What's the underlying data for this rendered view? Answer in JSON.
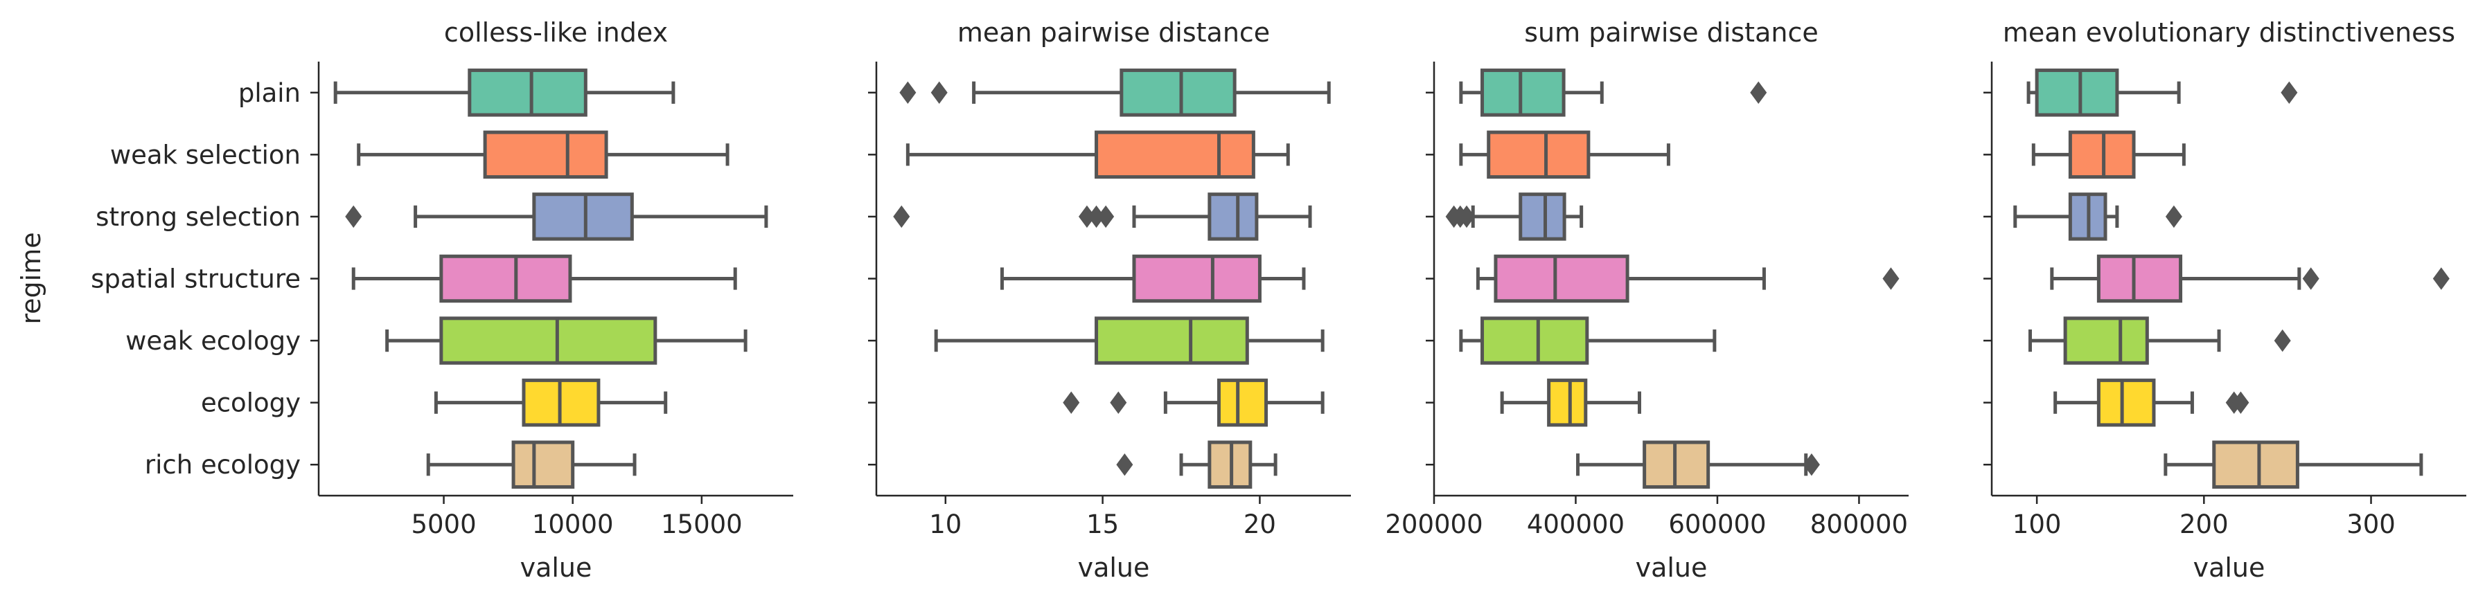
{
  "figure": {
    "ylabel": "regime",
    "categories": [
      "plain",
      "weak selection",
      "strong selection",
      "spatial structure",
      "weak ecology",
      "ecology",
      "rich ecology"
    ],
    "colors": [
      "#66c2a5",
      "#fc8d62",
      "#8da0cb",
      "#e78ac3",
      "#a6d854",
      "#ffd92f",
      "#e5c494"
    ],
    "line_color": "#555555"
  },
  "chart_data": [
    {
      "type": "box",
      "orientation": "horizontal",
      "title": "colless-like index",
      "xlabel": "value",
      "xlim": [
        150,
        18550
      ],
      "xticks": [
        5000,
        10000,
        15000
      ],
      "xtick_labels": [
        "5000",
        "10000",
        "15000"
      ],
      "boxes": [
        {
          "category": "plain",
          "whislo": 800,
          "q1": 6000,
          "median": 8400,
          "q3": 10500,
          "whishi": 13900,
          "fliers": []
        },
        {
          "category": "weak selection",
          "whislo": 1700,
          "q1": 6600,
          "median": 9800,
          "q3": 11300,
          "whishi": 16000,
          "fliers": []
        },
        {
          "category": "strong selection",
          "whislo": 3900,
          "q1": 8500,
          "median": 10500,
          "q3": 12300,
          "whishi": 17500,
          "fliers": [
            1500
          ]
        },
        {
          "category": "spatial structure",
          "whislo": 1500,
          "q1": 4900,
          "median": 7800,
          "q3": 9900,
          "whishi": 16300,
          "fliers": []
        },
        {
          "category": "weak ecology",
          "whislo": 2800,
          "q1": 4900,
          "median": 9400,
          "q3": 13200,
          "whishi": 16700,
          "fliers": []
        },
        {
          "category": "ecology",
          "whislo": 4700,
          "q1": 8100,
          "median": 9500,
          "q3": 11000,
          "whishi": 13600,
          "fliers": []
        },
        {
          "category": "rich ecology",
          "whislo": 4400,
          "q1": 7700,
          "median": 8500,
          "q3": 10000,
          "whishi": 12400,
          "fliers": []
        }
      ]
    },
    {
      "type": "box",
      "orientation": "horizontal",
      "title": "mean pairwise distance",
      "xlabel": "value",
      "xlim": [
        7.8,
        22.9
      ],
      "xticks": [
        10,
        15,
        20
      ],
      "xtick_labels": [
        "10",
        "15",
        "20"
      ],
      "boxes": [
        {
          "category": "plain",
          "whislo": 10.9,
          "q1": 15.6,
          "median": 17.5,
          "q3": 19.2,
          "whishi": 22.2,
          "fliers": [
            8.8,
            9.8
          ]
        },
        {
          "category": "weak selection",
          "whislo": 8.8,
          "q1": 14.8,
          "median": 18.7,
          "q3": 19.8,
          "whishi": 20.9,
          "fliers": []
        },
        {
          "category": "strong selection",
          "whislo": 16.0,
          "q1": 18.4,
          "median": 19.3,
          "q3": 19.9,
          "whishi": 21.6,
          "fliers": [
            8.6,
            14.5,
            14.8,
            15.1
          ]
        },
        {
          "category": "spatial structure",
          "whislo": 11.8,
          "q1": 16.0,
          "median": 18.5,
          "q3": 20.0,
          "whishi": 21.4,
          "fliers": []
        },
        {
          "category": "weak ecology",
          "whislo": 9.7,
          "q1": 14.8,
          "median": 17.8,
          "q3": 19.6,
          "whishi": 22.0,
          "fliers": []
        },
        {
          "category": "ecology",
          "whislo": 17.0,
          "q1": 18.7,
          "median": 19.3,
          "q3": 20.2,
          "whishi": 22.0,
          "fliers": [
            14.0,
            15.5
          ]
        },
        {
          "category": "rich ecology",
          "whislo": 17.5,
          "q1": 18.4,
          "median": 19.1,
          "q3": 19.7,
          "whishi": 20.5,
          "fliers": [
            15.7
          ]
        }
      ]
    },
    {
      "type": "box",
      "orientation": "horizontal",
      "title": "sum pairwise distance",
      "xlabel": "value",
      "xlim": [
        200000,
        870000
      ],
      "xticks": [
        200000,
        400000,
        600000,
        800000
      ],
      "xtick_labels": [
        "200000",
        "400000",
        "600000",
        "800000"
      ],
      "boxes": [
        {
          "category": "plain",
          "whislo": 238000,
          "q1": 268000,
          "median": 322000,
          "q3": 383000,
          "whishi": 437000,
          "fliers": [
            658000
          ]
        },
        {
          "category": "weak selection",
          "whislo": 238000,
          "q1": 277000,
          "median": 358000,
          "q3": 418000,
          "whishi": 531000,
          "fliers": []
        },
        {
          "category": "strong selection",
          "whislo": 255000,
          "q1": 322000,
          "median": 357000,
          "q3": 384000,
          "whishi": 408000,
          "fliers": [
            228000,
            237000,
            246000
          ]
        },
        {
          "category": "spatial structure",
          "whislo": 262000,
          "q1": 287000,
          "median": 371000,
          "q3": 473000,
          "whishi": 666000,
          "fliers": [
            845000
          ]
        },
        {
          "category": "weak ecology",
          "whislo": 238000,
          "q1": 268000,
          "median": 347000,
          "q3": 416000,
          "whishi": 596000,
          "fliers": []
        },
        {
          "category": "ecology",
          "whislo": 296000,
          "q1": 362000,
          "median": 392000,
          "q3": 414000,
          "whishi": 490000,
          "fliers": []
        },
        {
          "category": "rich ecology",
          "whislo": 403000,
          "q1": 497000,
          "median": 540000,
          "q3": 587000,
          "whishi": 725000,
          "fliers": [
            733000
          ]
        }
      ]
    },
    {
      "type": "box",
      "orientation": "horizontal",
      "title": "mean evolutionary distinctiveness",
      "xlabel": "value",
      "xlim": [
        73,
        357
      ],
      "xticks": [
        100,
        200,
        300
      ],
      "xtick_labels": [
        "100",
        "200",
        "300"
      ],
      "boxes": [
        {
          "category": "plain",
          "whislo": 95,
          "q1": 100,
          "median": 126,
          "q3": 148,
          "whishi": 185,
          "fliers": [
            251
          ]
        },
        {
          "category": "weak selection",
          "whislo": 98,
          "q1": 120,
          "median": 140,
          "q3": 158,
          "whishi": 188,
          "fliers": []
        },
        {
          "category": "strong selection",
          "whislo": 87,
          "q1": 120,
          "median": 131,
          "q3": 141,
          "whishi": 148,
          "fliers": [
            182
          ]
        },
        {
          "category": "spatial structure",
          "whislo": 109,
          "q1": 137,
          "median": 158,
          "q3": 186,
          "whishi": 257,
          "fliers": [
            264,
            342
          ]
        },
        {
          "category": "weak ecology",
          "whislo": 96,
          "q1": 117,
          "median": 150,
          "q3": 166,
          "whishi": 209,
          "fliers": [
            247
          ]
        },
        {
          "category": "ecology",
          "whislo": 111,
          "q1": 137,
          "median": 151,
          "q3": 170,
          "whishi": 193,
          "fliers": [
            218,
            222
          ]
        },
        {
          "category": "rich ecology",
          "whislo": 177,
          "q1": 206,
          "median": 233,
          "q3": 256,
          "whishi": 330,
          "fliers": []
        }
      ]
    }
  ]
}
